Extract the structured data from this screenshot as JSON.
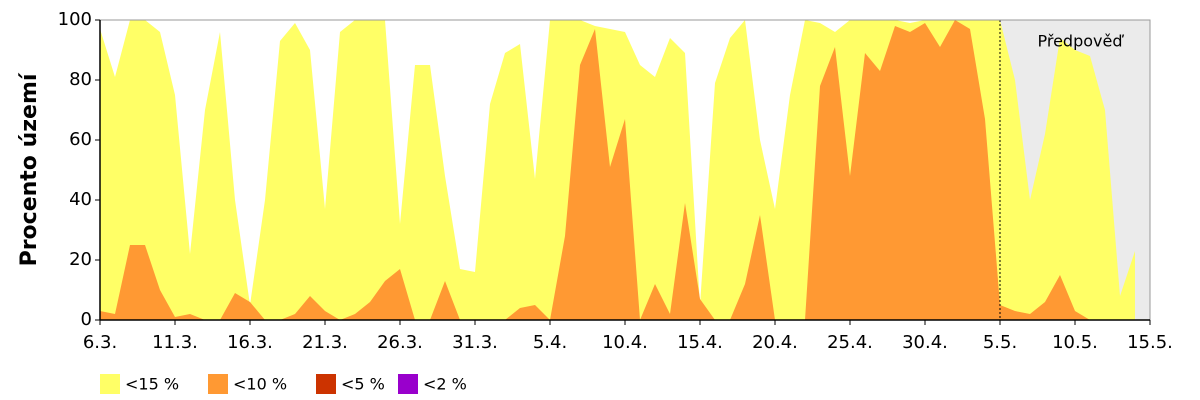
{
  "chart_data": {
    "type": "area",
    "ylabel": "Procento území",
    "annotation": "Předpověď",
    "forecast_start_index": 60,
    "forecast_color": "#ebebeb",
    "categories": [
      "6.3.",
      null,
      null,
      null,
      null,
      "11.3.",
      null,
      null,
      null,
      null,
      "16.3.",
      null,
      null,
      null,
      null,
      "21.3.",
      null,
      null,
      null,
      null,
      "26.3.",
      null,
      null,
      null,
      null,
      "31.3.",
      null,
      null,
      null,
      null,
      "5.4.",
      null,
      null,
      null,
      null,
      "10.4.",
      null,
      null,
      null,
      null,
      "15.4.",
      null,
      null,
      null,
      null,
      "20.4.",
      null,
      null,
      null,
      null,
      "25.4.",
      null,
      null,
      null,
      null,
      "30.4.",
      null,
      null,
      null,
      null,
      "5.5.",
      null,
      null,
      null,
      null,
      "10.5.",
      null,
      null,
      null,
      null,
      "15.5."
    ],
    "series": [
      {
        "name": "<15 %",
        "color": "#ffff66",
        "values": [
          97,
          81,
          100,
          100,
          96,
          75,
          22,
          70,
          96,
          40,
          5,
          40,
          93,
          99,
          90,
          37,
          96,
          100,
          100,
          100,
          32,
          85,
          85,
          48,
          17,
          16,
          72,
          89,
          92,
          47,
          100,
          100,
          100,
          98,
          97,
          96,
          85,
          81,
          94,
          89,
          5,
          79,
          94,
          100,
          60,
          37,
          75,
          100,
          99,
          96,
          100,
          100,
          100,
          100,
          99,
          100,
          100,
          100,
          100,
          100,
          100,
          80,
          40,
          62,
          94,
          90,
          88,
          70,
          8,
          23,
          null
        ]
      },
      {
        "name": "<10 %",
        "color": "#ff9933",
        "values": [
          3,
          2,
          25,
          25,
          10,
          1,
          2,
          0,
          0,
          9,
          6,
          0,
          0,
          2,
          8,
          3,
          0,
          2,
          6,
          13,
          17,
          0,
          0,
          13,
          0,
          0,
          0,
          0,
          4,
          5,
          0,
          28,
          85,
          97,
          51,
          67,
          0,
          12,
          2,
          39,
          7,
          0,
          0,
          12,
          35,
          0,
          0,
          0,
          78,
          91,
          48,
          89,
          83,
          98,
          96,
          99,
          91,
          100,
          97,
          67,
          5,
          3,
          2,
          6,
          15,
          3,
          0,
          0,
          0,
          0,
          null
        ]
      },
      {
        "name": "<5 %",
        "color": "#cc3300",
        "values": [
          0,
          0,
          0,
          0,
          0,
          0,
          0,
          0,
          0,
          0,
          0,
          0,
          0,
          0,
          0,
          0,
          0,
          0,
          0,
          0,
          0,
          0,
          0,
          0,
          0,
          0,
          0,
          0,
          0,
          0,
          0,
          0,
          0,
          0,
          0,
          0,
          0,
          0,
          0,
          0,
          0,
          0,
          0,
          0,
          0,
          0,
          0,
          0,
          0,
          0,
          0,
          0,
          0,
          0,
          0,
          0,
          0,
          0,
          0,
          0,
          0,
          0,
          0,
          0,
          0,
          0,
          0,
          0,
          0,
          0,
          null
        ]
      },
      {
        "name": "<2 %",
        "color": "#9900cc",
        "values": [
          0,
          0,
          0,
          0,
          0,
          0,
          0,
          0,
          0,
          0,
          0,
          0,
          0,
          0,
          0,
          0,
          0,
          0,
          0,
          0,
          0,
          0,
          0,
          0,
          0,
          0,
          0,
          0,
          0,
          0,
          0,
          0,
          0,
          0,
          0,
          0,
          0,
          0,
          0,
          0,
          0,
          0,
          0,
          0,
          0,
          0,
          0,
          0,
          0,
          0,
          0,
          0,
          0,
          0,
          0,
          0,
          0,
          0,
          0,
          0,
          0,
          0,
          0,
          0,
          0,
          0,
          0,
          0,
          0,
          0,
          null
        ]
      }
    ],
    "ylim": [
      0,
      100
    ],
    "yticks": [
      0,
      20,
      40,
      60,
      80,
      100
    ]
  }
}
